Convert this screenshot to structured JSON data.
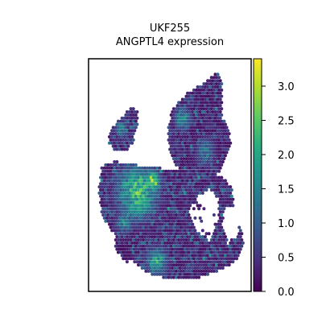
{
  "chart_data": {
    "type": "scatter",
    "title": "UKF255",
    "subtitle": "ANGPTL4 expression",
    "xlabel": "",
    "ylabel": "",
    "grid": false,
    "colorbar": {
      "colormap": "viridis",
      "range": [
        0.0,
        3.4
      ],
      "ticks": [
        0.0,
        0.5,
        1.0,
        1.5,
        2.0,
        2.5,
        3.0
      ],
      "tick_labels": [
        "0.0",
        "0.5",
        "1.0",
        "1.5",
        "2.0",
        "2.5",
        "3.0"
      ],
      "placement": "right"
    },
    "spots": {
      "description_units": "spatial transcriptomics spots, hexagonal grid in tissue coordinates (x right, y up, range 0-100)",
      "x_range": [
        0,
        100
      ],
      "y_range": [
        0,
        100
      ],
      "regions": [
        {
          "name": "upper-right-lobe",
          "polygon": [
            [
              52,
              79
            ],
            [
              62,
              86
            ],
            [
              74,
              91
            ],
            [
              79,
              94
            ],
            [
              82,
              90
            ],
            [
              82,
              75
            ],
            [
              86,
              70
            ],
            [
              88,
              64
            ],
            [
              84,
              56
            ],
            [
              79,
              50
            ],
            [
              68,
              50
            ],
            [
              60,
              51
            ],
            [
              52,
              55
            ],
            [
              48,
              62
            ],
            [
              49,
              71
            ]
          ],
          "base": 0.6
        },
        {
          "name": "upper-left-island",
          "polygon": [
            [
              14,
              70
            ],
            [
              19,
              74
            ],
            [
              26,
              79
            ],
            [
              30,
              78
            ],
            [
              30,
              70
            ],
            [
              28,
              65
            ],
            [
              24,
              60
            ],
            [
              16,
              61
            ],
            [
              12,
              64
            ]
          ],
          "base": 0.8
        },
        {
          "name": "lower-main-body",
          "polygon": [
            [
              8,
              54
            ],
            [
              16,
              56
            ],
            [
              24,
              55
            ],
            [
              34,
              54
            ],
            [
              44,
              53
            ],
            [
              54,
              53
            ],
            [
              62,
              52
            ],
            [
              72,
              50
            ],
            [
              82,
              50
            ],
            [
              88,
              45
            ],
            [
              90,
              34
            ],
            [
              94,
              26
            ],
            [
              96,
              20
            ],
            [
              92,
              14
            ],
            [
              86,
              11
            ],
            [
              78,
              8
            ],
            [
              68,
              6
            ],
            [
              58,
              6
            ],
            [
              46,
              6
            ],
            [
              36,
              8
            ],
            [
              28,
              12
            ],
            [
              26,
              20
            ],
            [
              20,
              22
            ],
            [
              14,
              26
            ],
            [
              8,
              33
            ],
            [
              6,
              44
            ]
          ],
          "base": 0.7
        },
        {
          "name": "tail-lower-left",
          "polygon": [
            [
              16,
              26
            ],
            [
              26,
              22
            ],
            [
              28,
              16
            ],
            [
              24,
              12
            ],
            [
              16,
              18
            ]
          ],
          "base": 0.5
        }
      ],
      "holes": [
        {
          "name": "gap-top-middle",
          "polygon": [
            [
              30,
              70
            ],
            [
              40,
              72
            ],
            [
              48,
              70
            ],
            [
              50,
              62
            ],
            [
              48,
              55
            ],
            [
              38,
              55
            ],
            [
              30,
              58
            ],
            [
              28,
              66
            ]
          ]
        },
        {
          "name": "gap-right-notch",
          "polygon": [
            [
              66,
              40
            ],
            [
              74,
              44
            ],
            [
              80,
              40
            ],
            [
              80,
              30
            ],
            [
              74,
              22
            ],
            [
              66,
              26
            ],
            [
              62,
              34
            ]
          ]
        },
        {
          "name": "gap-right-channel",
          "polygon": [
            [
              84,
              36
            ],
            [
              92,
              36
            ],
            [
              92,
              24
            ],
            [
              86,
              20
            ],
            [
              82,
              28
            ]
          ]
        }
      ],
      "hotspots": [
        {
          "name": "left-center-high",
          "center": [
            30,
            43
          ],
          "radius": 12,
          "value": 2.6
        },
        {
          "name": "center-peak",
          "center": [
            39,
            47
          ],
          "radius": 5,
          "value": 3.2
        },
        {
          "name": "top-cluster",
          "center": [
            43,
            69
          ],
          "radius": 6,
          "value": 2.4
        },
        {
          "name": "upper-right-spot",
          "center": [
            58,
            74
          ],
          "radius": 5,
          "value": 1.9
        },
        {
          "name": "lower-center-patch",
          "center": [
            42,
            13
          ],
          "radius": 6,
          "value": 2.3
        },
        {
          "name": "lower-left-patch",
          "center": [
            22,
            30
          ],
          "radius": 5,
          "value": 1.8
        },
        {
          "name": "left-island-spot",
          "center": [
            20,
            70
          ],
          "radius": 4,
          "value": 1.6
        },
        {
          "name": "right-lobe-mid",
          "center": [
            72,
            60
          ],
          "radius": 6,
          "value": 1.5
        }
      ]
    }
  }
}
